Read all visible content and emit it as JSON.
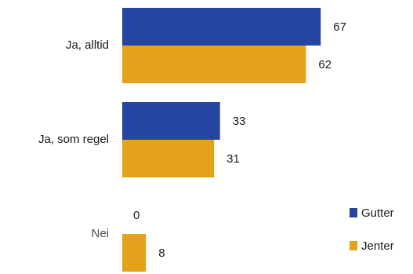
{
  "chart_data": {
    "type": "bar",
    "orientation": "horizontal",
    "categories": [
      "Ja, alltid",
      "Ja, som regel",
      "Nei"
    ],
    "series": [
      {
        "name": "Gutter",
        "values": [
          67,
          33,
          0
        ],
        "color": "#2645a3"
      },
      {
        "name": "Jenter",
        "values": [
          62,
          31,
          8
        ],
        "color": "#e4a21c"
      }
    ],
    "xlim": [
      0,
      67
    ],
    "grid": false,
    "legend_position": "bottom-right",
    "title": "",
    "xlabel": "",
    "ylabel": ""
  }
}
